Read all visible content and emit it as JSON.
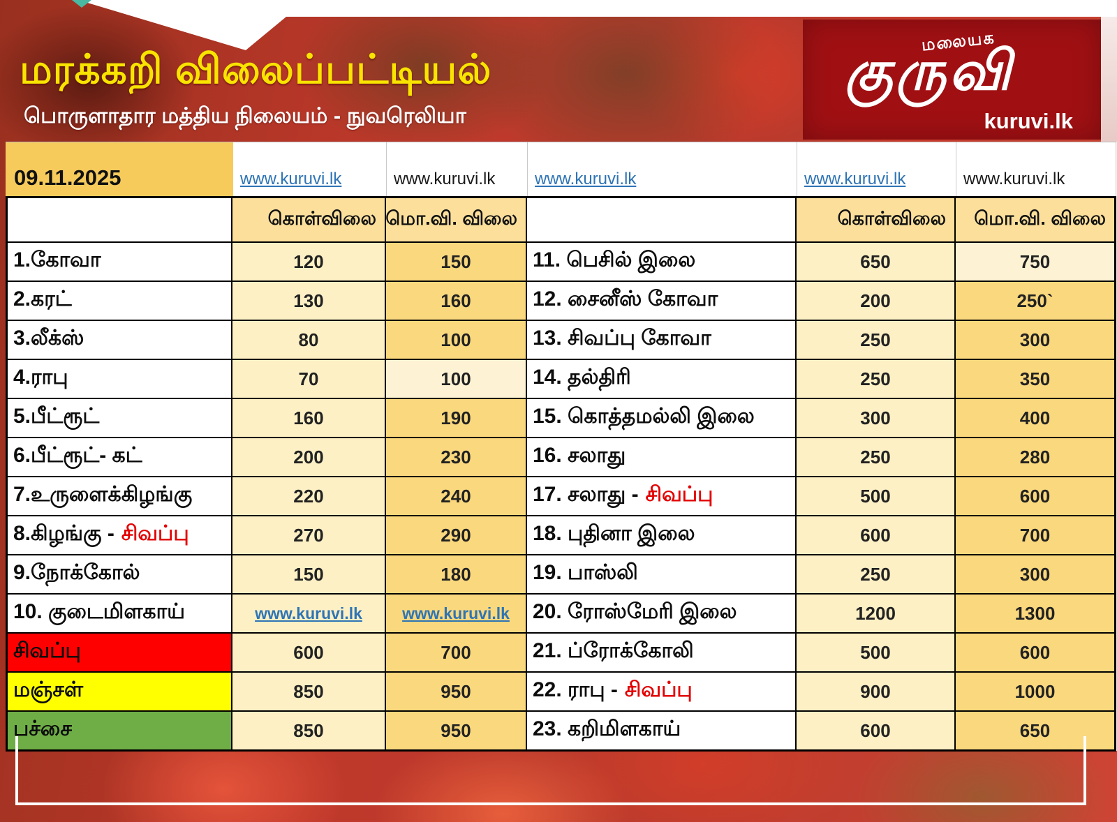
{
  "header": {
    "title": "மரக்கறி விலைப்பட்டியல்",
    "subtitle": "பொருளாதார மத்திய நிலையம் - நுவரெலியா",
    "logo": {
      "tagline": "மலையக",
      "brand": "குருவி",
      "site": "kuruvi.lk"
    }
  },
  "table": {
    "date": "09.11.2025",
    "link_row": [
      {
        "text": "www.kuruvi.lk",
        "variant": "link"
      },
      {
        "text": "www.kuruvi.lk",
        "variant": "plain"
      },
      {
        "text": "www.kuruvi.lk",
        "variant": "link"
      },
      {
        "text": "www.kuruvi.lk",
        "variant": "link"
      },
      {
        "text": "www.kuruvi.lk",
        "variant": "plain"
      }
    ],
    "price_headers": {
      "buy": "கொள்விலை",
      "wholesale": "மொ.வி. விலை"
    },
    "rows": [
      {
        "left": {
          "name": "1.கோவா",
          "buy": "120",
          "whole": "150"
        },
        "right": {
          "name": "11. பெசில் இலை",
          "buy": "650",
          "whole": "750",
          "lightWhole": true
        }
      },
      {
        "left": {
          "name": "2.கரட்",
          "buy": "130",
          "whole": "160"
        },
        "right": {
          "name": "12. சைனீஸ் கோவா",
          "buy": "200",
          "whole": "250`"
        }
      },
      {
        "left": {
          "name": "3.லீக்ஸ்",
          "buy": "80",
          "whole": "100"
        },
        "right": {
          "name": "13. சிவப்பு கோவா",
          "buy": "250",
          "whole": "300"
        }
      },
      {
        "left": {
          "name": "4.ராபு",
          "buy": "70",
          "whole": "100",
          "lightWhole": true
        },
        "right": {
          "name": "14. தல்திரி",
          "buy": "250",
          "whole": "350"
        }
      },
      {
        "left": {
          "name": "5.பீட்ரூட்",
          "buy": "160",
          "whole": "190"
        },
        "right": {
          "name": "15. கொத்தமல்லி இலை",
          "buy": "300",
          "whole": "400"
        }
      },
      {
        "left": {
          "name": "6.பீட்ரூட்- கட்",
          "buy": "200",
          "whole": "230"
        },
        "right": {
          "name": "16. சலாது",
          "buy": "250",
          "whole": "280"
        }
      },
      {
        "left": {
          "name": "7.உருளைக்கிழங்கு",
          "buy": "220",
          "whole": "240"
        },
        "right": {
          "name": "17. சலாது - ",
          "nameRed": "சிவப்பு",
          "buy": "500",
          "whole": "600"
        }
      },
      {
        "left": {
          "name": "8.கிழங்கு - ",
          "nameRed": "சிவப்பு",
          "buy": "270",
          "whole": "290"
        },
        "right": {
          "name": "18. புதினா இலை",
          "buy": "600",
          "whole": "700"
        }
      },
      {
        "left": {
          "name": "9.நோக்கோல்",
          "buy": "150",
          "whole": "180"
        },
        "right": {
          "name": "19. பாஸ்லி",
          "buy": "250",
          "whole": "300"
        }
      },
      {
        "left": {
          "name": "10. குடைமிளகாய்",
          "buy": "www.kuruvi.lk",
          "buyLink": true,
          "whole": "www.kuruvi.lk",
          "wholeLink": true
        },
        "right": {
          "name": "20. ரோஸ்மேரி இலை",
          "buy": "1200",
          "whole": "1300"
        }
      },
      {
        "left": {
          "name": "சிவப்பு",
          "nameBg": "row_red",
          "buy": "600",
          "whole": "700"
        },
        "right": {
          "name": "21. ப்ரோக்கோலி",
          "buy": "500",
          "whole": "600"
        }
      },
      {
        "left": {
          "name": "மஞ்சள்",
          "nameBg": "row_yellow",
          "buy": "850",
          "whole": "950"
        },
        "right": {
          "name": "22. ராபு - ",
          "nameRed": "சிவப்பு",
          "buy": "900",
          "whole": "1000"
        }
      },
      {
        "left": {
          "name": "பச்சை",
          "nameBg": "row_green",
          "buy": "850",
          "whole": "950"
        },
        "right": {
          "name": "23. கறிமிளகாய்",
          "buy": "600",
          "whole": "650"
        }
      }
    ]
  },
  "colors": {
    "row_red": "#ff0000",
    "row_yellow": "#ffff00",
    "row_green": "#6fae46",
    "red_word": "#e30000",
    "link_blue": "#2e74b5",
    "date_cell": "#f6cb5c",
    "price_cream": "#fdf0c5",
    "price_gold": "#fad87d",
    "header_gold": "#fbdf9b",
    "logo_red": "#a01013",
    "title_yellow": "#f8e400"
  }
}
